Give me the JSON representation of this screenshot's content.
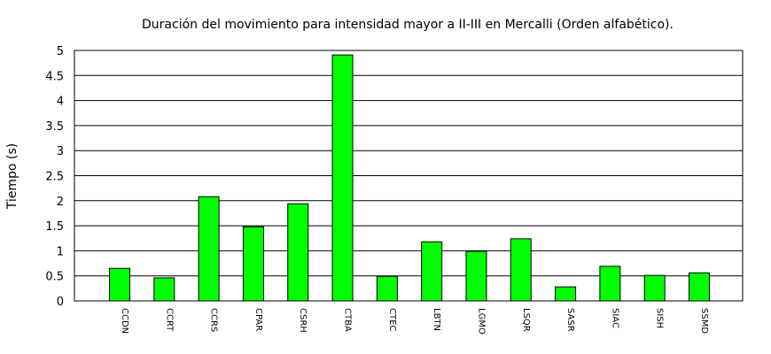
{
  "chart_data": {
    "type": "bar",
    "title": "Duración del movimiento para intensidad mayor a II-III en Mercalli (Orden alfabético).",
    "xlabel": "",
    "ylabel": "Tiempo (s)",
    "ylim": [
      0,
      5
    ],
    "yticks": [
      "0",
      "0.5",
      "1",
      "1.5",
      "2",
      "2.5",
      "3",
      "3.5",
      "4",
      "4.5",
      "5"
    ],
    "grid": true,
    "bar_color": "#00ff00",
    "categories": [
      "CCDN",
      "CCRT",
      "CCRS",
      "CPAR",
      "CSRH",
      "CTBA",
      "CTEC",
      "LBTN",
      "LGMO",
      "LSQR",
      "SASR",
      "SIAC",
      "SISH",
      "SSMD"
    ],
    "values": [
      0.65,
      0.46,
      2.08,
      1.48,
      1.94,
      4.91,
      0.49,
      1.18,
      0.99,
      1.24,
      0.28,
      0.69,
      0.51,
      0.56
    ]
  }
}
